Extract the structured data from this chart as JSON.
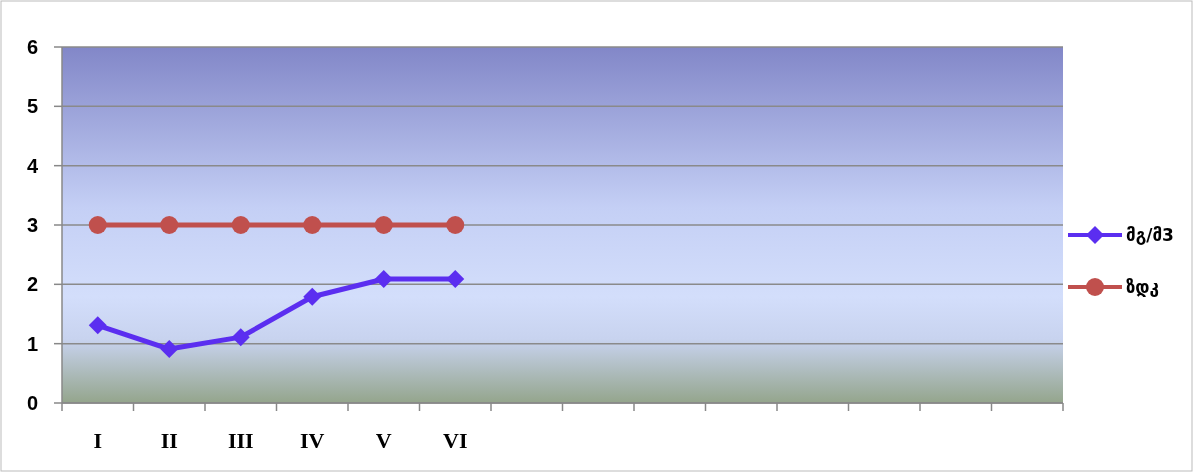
{
  "chart_data": {
    "type": "line",
    "categories": [
      "I",
      "II",
      "III",
      "IV",
      "V",
      "VI",
      null,
      null,
      null,
      null,
      null,
      null,
      null,
      null
    ],
    "series": [
      {
        "name": "მგ/მ3",
        "color": "#5b2ef0",
        "marker": "diamond",
        "values": [
          1.31,
          0.91,
          1.11,
          1.79,
          2.09,
          2.09,
          null,
          null,
          null,
          null,
          null,
          null,
          null,
          null
        ]
      },
      {
        "name": "ზდკ",
        "color": "#c0504d",
        "marker": "circle",
        "values": [
          3,
          3,
          3,
          3,
          3,
          3,
          null,
          null,
          null,
          null,
          null,
          null,
          null,
          null
        ]
      }
    ],
    "ylim": [
      0,
      6
    ],
    "yticks": [
      0,
      1,
      2,
      3,
      4,
      5,
      6
    ],
    "grid": "y",
    "legend": "right"
  }
}
